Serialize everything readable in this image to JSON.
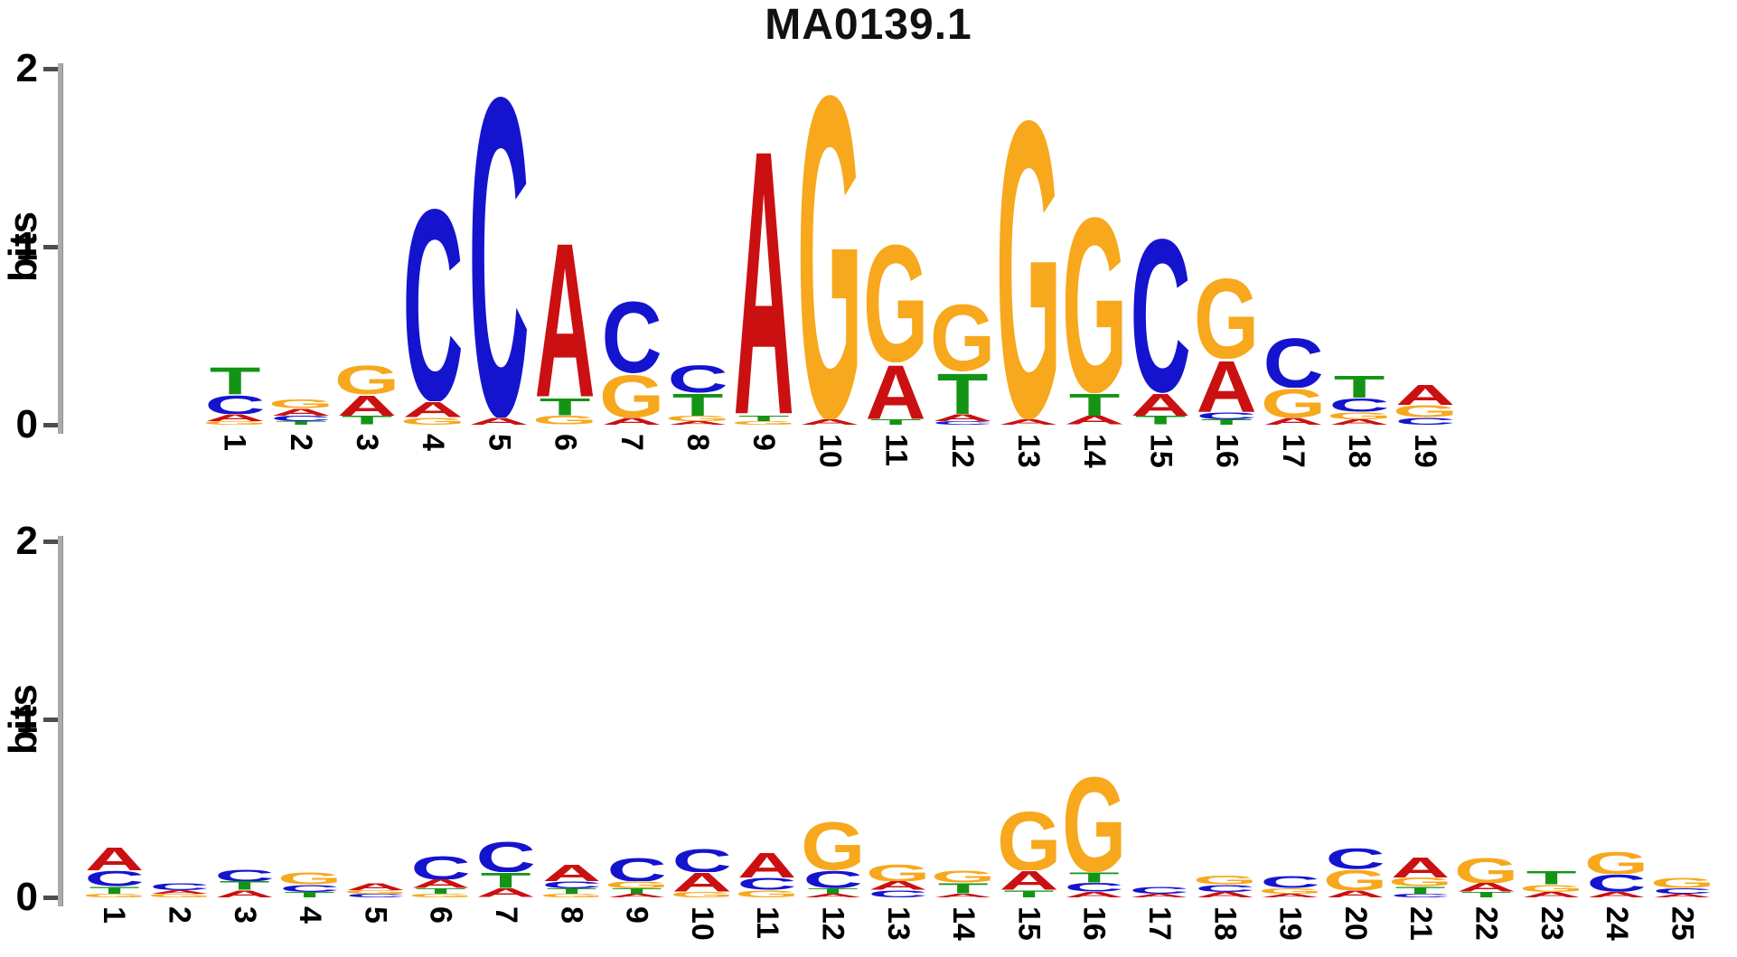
{
  "title": "MA0139.1",
  "base_colors": {
    "A": "#cb1012",
    "C": "#1414cf",
    "G": "#f7a81d",
    "T": "#149414"
  },
  "chart_data": [
    {
      "type": "sequence_logo",
      "title": "MA0139.1",
      "ylabel": "bits",
      "ylim": [
        0,
        2
      ],
      "yticks": [
        "2",
        "1",
        "0"
      ],
      "positions": [
        "1",
        "2",
        "3",
        "4",
        "5",
        "6",
        "7",
        "8",
        "9",
        "10",
        "11",
        "12",
        "13",
        "14",
        "15",
        "16",
        "17",
        "18",
        "19"
      ],
      "stacks": [
        [
          [
            "T",
            0.16
          ],
          [
            "C",
            0.11
          ],
          [
            "A",
            0.04
          ],
          [
            "G",
            0.02
          ]
        ],
        [
          [
            "G",
            0.05
          ],
          [
            "A",
            0.04
          ],
          [
            "C",
            0.03
          ],
          [
            "T",
            0.02
          ]
        ],
        [
          [
            "G",
            0.17
          ],
          [
            "A",
            0.12
          ],
          [
            "T",
            0.05
          ]
        ],
        [
          [
            "C",
            1.13
          ],
          [
            "A",
            0.09
          ],
          [
            "G",
            0.04
          ]
        ],
        [
          [
            "C",
            1.88
          ],
          [
            "A",
            0.04
          ]
        ],
        [
          [
            "A",
            0.91
          ],
          [
            "T",
            0.1
          ],
          [
            "G",
            0.05
          ]
        ],
        [
          [
            "C",
            0.42
          ],
          [
            "G",
            0.25
          ],
          [
            "A",
            0.04
          ]
        ],
        [
          [
            "C",
            0.16
          ],
          [
            "T",
            0.13
          ],
          [
            "G",
            0.03
          ],
          [
            "A",
            0.02
          ]
        ],
        [
          [
            "A",
            1.56
          ],
          [
            "T",
            0.03
          ],
          [
            "G",
            0.02
          ]
        ],
        [
          [
            "G",
            1.9
          ],
          [
            "A",
            0.03
          ]
        ],
        [
          [
            "G",
            0.69
          ],
          [
            "A",
            0.32
          ],
          [
            "T",
            0.03
          ]
        ],
        [
          [
            "G",
            0.39
          ],
          [
            "T",
            0.24
          ],
          [
            "A",
            0.04
          ],
          [
            "C",
            0.02
          ]
        ],
        [
          [
            "G",
            1.75
          ],
          [
            "A",
            0.03
          ]
        ],
        [
          [
            "G",
            1.03
          ],
          [
            "T",
            0.13
          ],
          [
            "A",
            0.05
          ]
        ],
        [
          [
            "C",
            0.9
          ],
          [
            "A",
            0.13
          ],
          [
            "T",
            0.05
          ]
        ],
        [
          [
            "G",
            0.47
          ],
          [
            "A",
            0.3
          ],
          [
            "C",
            0.04
          ],
          [
            "T",
            0.03
          ]
        ],
        [
          [
            "C",
            0.29
          ],
          [
            "G",
            0.17
          ],
          [
            "A",
            0.04
          ]
        ],
        [
          [
            "T",
            0.13
          ],
          [
            "C",
            0.08
          ],
          [
            "G",
            0.04
          ],
          [
            "A",
            0.03
          ]
        ],
        [
          [
            "A",
            0.12
          ],
          [
            "G",
            0.07
          ],
          [
            "C",
            0.04
          ]
        ]
      ]
    },
    {
      "type": "sequence_logo",
      "title": "",
      "ylabel": "bits",
      "ylim": [
        0,
        2
      ],
      "yticks": [
        "2",
        "1",
        "0"
      ],
      "positions": [
        "1",
        "2",
        "3",
        "4",
        "5",
        "6",
        "7",
        "8",
        "9",
        "10",
        "11",
        "12",
        "13",
        "14",
        "15",
        "16",
        "17",
        "18",
        "19",
        "20",
        "21",
        "22",
        "23",
        "24",
        "25"
      ],
      "stacks": [
        [
          [
            "A",
            0.14
          ],
          [
            "C",
            0.09
          ],
          [
            "T",
            0.04
          ],
          [
            "G",
            0.02
          ]
        ],
        [
          [
            "C",
            0.04
          ],
          [
            "A",
            0.02
          ],
          [
            "G",
            0.02
          ]
        ],
        [
          [
            "C",
            0.07
          ],
          [
            "T",
            0.05
          ],
          [
            "A",
            0.04
          ]
        ],
        [
          [
            "G",
            0.07
          ],
          [
            "C",
            0.04
          ],
          [
            "T",
            0.03
          ]
        ],
        [
          [
            "A",
            0.04
          ],
          [
            "G",
            0.02
          ],
          [
            "C",
            0.02
          ]
        ],
        [
          [
            "C",
            0.14
          ],
          [
            "A",
            0.05
          ],
          [
            "T",
            0.03
          ],
          [
            "G",
            0.02
          ]
        ],
        [
          [
            "C",
            0.18
          ],
          [
            "T",
            0.09
          ],
          [
            "A",
            0.05
          ]
        ],
        [
          [
            "A",
            0.1
          ],
          [
            "C",
            0.04
          ],
          [
            "T",
            0.03
          ],
          [
            "G",
            0.02
          ]
        ],
        [
          [
            "C",
            0.14
          ],
          [
            "G",
            0.04
          ],
          [
            "T",
            0.03
          ],
          [
            "A",
            0.02
          ]
        ],
        [
          [
            "C",
            0.14
          ],
          [
            "A",
            0.11
          ],
          [
            "G",
            0.03
          ]
        ],
        [
          [
            "A",
            0.15
          ],
          [
            "C",
            0.07
          ],
          [
            "G",
            0.04
          ]
        ],
        [
          [
            "G",
            0.28
          ],
          [
            "C",
            0.1
          ],
          [
            "T",
            0.03
          ],
          [
            "A",
            0.02
          ]
        ],
        [
          [
            "G",
            0.1
          ],
          [
            "A",
            0.05
          ],
          [
            "C",
            0.04
          ]
        ],
        [
          [
            "G",
            0.07
          ],
          [
            "T",
            0.06
          ],
          [
            "A",
            0.02
          ]
        ],
        [
          [
            "G",
            0.35
          ],
          [
            "A",
            0.11
          ],
          [
            "T",
            0.04
          ]
        ],
        [
          [
            "G",
            0.56
          ],
          [
            "T",
            0.06
          ],
          [
            "C",
            0.05
          ],
          [
            "A",
            0.03
          ]
        ],
        [
          [
            "C",
            0.04
          ],
          [
            "A",
            0.02
          ]
        ],
        [
          [
            "G",
            0.05
          ],
          [
            "C",
            0.04
          ],
          [
            "A",
            0.03
          ]
        ],
        [
          [
            "C",
            0.07
          ],
          [
            "G",
            0.03
          ],
          [
            "A",
            0.02
          ]
        ],
        [
          [
            "C",
            0.12
          ],
          [
            "G",
            0.12
          ],
          [
            "A",
            0.04
          ]
        ],
        [
          [
            "A",
            0.12
          ],
          [
            "G",
            0.05
          ],
          [
            "T",
            0.04
          ],
          [
            "C",
            0.02
          ]
        ],
        [
          [
            "G",
            0.15
          ],
          [
            "A",
            0.05
          ],
          [
            "T",
            0.03
          ]
        ],
        [
          [
            "T",
            0.08
          ],
          [
            "G",
            0.04
          ],
          [
            "A",
            0.03
          ]
        ],
        [
          [
            "G",
            0.13
          ],
          [
            "C",
            0.1
          ],
          [
            "A",
            0.03
          ]
        ],
        [
          [
            "G",
            0.06
          ],
          [
            "C",
            0.03
          ],
          [
            "A",
            0.02
          ]
        ]
      ]
    }
  ]
}
